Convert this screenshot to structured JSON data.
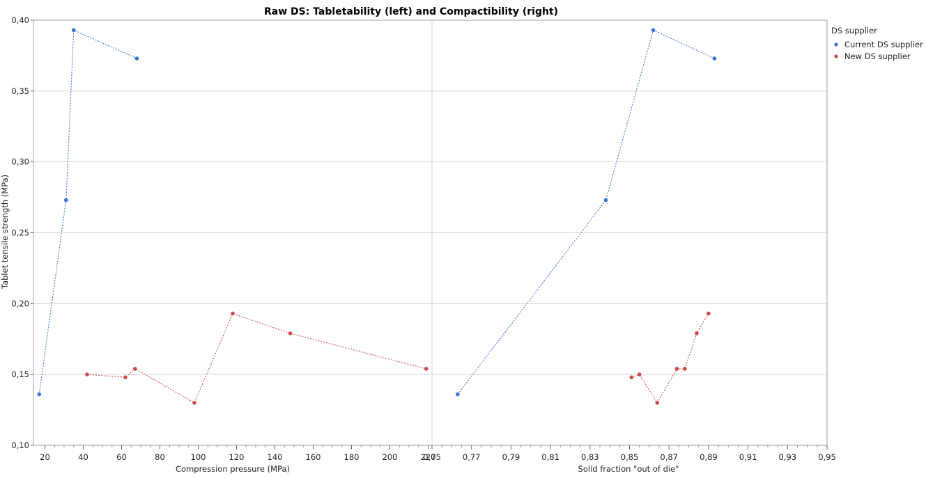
{
  "chart_data": {
    "type": "line",
    "title": "Raw DS: Tabletability (left) and Compactibility (right)",
    "ylabel": "Tablet tensile strength (MPa)",
    "ylim": [
      0.1,
      0.4
    ],
    "yticks": [
      "0,10",
      "0,15",
      "0,20",
      "0,25",
      "0,30",
      "0,35",
      "0,40"
    ],
    "grid": true,
    "legend": {
      "title": "DS supplier",
      "placement": "right",
      "entries": [
        "Current DS supplier",
        "New DS supplier"
      ]
    },
    "panels": [
      {
        "xlabel": "Compression pressure (MPa)",
        "xlim": [
          14,
          222
        ],
        "xticks": [
          20,
          40,
          60,
          80,
          100,
          120,
          140,
          160,
          180,
          200,
          220
        ],
        "xtick_labels": [
          "20",
          "40",
          "60",
          "80",
          "100",
          "120",
          "140",
          "160",
          "180",
          "200",
          "220"
        ],
        "series": [
          {
            "name": "Current DS supplier",
            "color": "#3b6fd6",
            "x": [
              17,
              31,
              35,
              68
            ],
            "y": [
              0.136,
              0.273,
              0.393,
              0.373
            ]
          },
          {
            "name": "New DS supplier",
            "color": "#cc4b4f",
            "x": [
              42,
              62,
              67,
              98,
              118,
              148,
              219
            ],
            "y": [
              0.15,
              0.148,
              0.154,
              0.13,
              0.193,
              0.179,
              0.154
            ]
          }
        ]
      },
      {
        "xlabel": "Solid fraction \"out of die\"",
        "xlim": [
          0.75,
          0.95
        ],
        "xticks": [
          0.75,
          0.77,
          0.79,
          0.81,
          0.83,
          0.85,
          0.87,
          0.89,
          0.91,
          0.93,
          0.95
        ],
        "xtick_labels": [
          "0,75",
          "0,77",
          "0,79",
          "0,81",
          "0,83",
          "0,85",
          "0,87",
          "0,89",
          "0,91",
          "0,93",
          "0,95"
        ],
        "series": [
          {
            "name": "Current DS supplier",
            "color": "#3b6fd6",
            "x": [
              0.763,
              0.838,
              0.862,
              0.893
            ],
            "y": [
              0.136,
              0.273,
              0.393,
              0.373
            ]
          },
          {
            "name": "New DS supplier",
            "color": "#cc4b4f",
            "x": [
              0.851,
              0.855,
              0.864,
              0.874,
              0.878,
              0.884,
              0.89
            ],
            "y": [
              0.148,
              0.15,
              0.13,
              0.154,
              0.154,
              0.179,
              0.193
            ]
          }
        ]
      }
    ]
  }
}
